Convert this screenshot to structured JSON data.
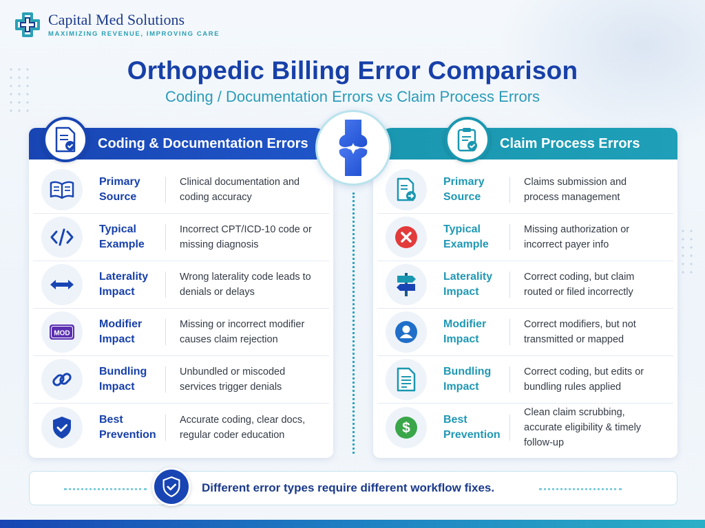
{
  "brand": {
    "name": "Capital Med Solutions",
    "tagline": "MAXIMIZING REVENUE, IMPROVING CARE"
  },
  "title": "Orthopedic Billing Error Comparison",
  "subtitle": "Coding / Documentation Errors vs Claim Process Errors",
  "colors": {
    "left_accent": "#1845b3",
    "right_accent": "#1a97b0",
    "footer_text": "#1a3a8a"
  },
  "left_panel": {
    "title": "Coding & Documentation Errors",
    "header_icon": "document-check-icon",
    "rows": [
      {
        "label": "Primary Source",
        "desc": "Clinical documentation and coding accuracy",
        "icon": "book-icon"
      },
      {
        "label": "Typical Example",
        "desc": "Incorrect CPT/ICD-10 code or missing diagnosis",
        "icon": "code-icon"
      },
      {
        "label": "Laterality Impact",
        "desc": "Wrong laterality code leads to denials or delays",
        "icon": "double-arrow-icon"
      },
      {
        "label": "Modifier Impact",
        "desc": "Missing or incorrect modifier causes claim rejection",
        "icon": "mod-icon",
        "icon_text": "MOD"
      },
      {
        "label": "Bundling Impact",
        "desc": "Unbundled or miscoded services trigger denials",
        "icon": "link-icon"
      },
      {
        "label": "Best Prevention",
        "desc": "Accurate coding, clear docs, regular coder education",
        "icon": "shield-check-icon"
      }
    ]
  },
  "right_panel": {
    "title": "Claim Process Errors",
    "header_icon": "clipboard-check-icon",
    "rows": [
      {
        "label": "Primary Source",
        "desc": "Claims submission and process management",
        "icon": "document-arrow-icon"
      },
      {
        "label": "Typical Example",
        "desc": "Missing authorization or incorrect payer info",
        "icon": "error-x-icon"
      },
      {
        "label": "Laterality Impact",
        "desc": "Correct coding, but claim routed or filed incorrectly",
        "icon": "signpost-icon"
      },
      {
        "label": "Modifier Impact",
        "desc": "Correct modifiers, but not transmitted or mapped",
        "icon": "user-icon"
      },
      {
        "label": "Bundling Impact",
        "desc": "Correct coding, but edits or bundling rules applied",
        "icon": "document-lines-icon"
      },
      {
        "label": "Best Prevention",
        "desc": "Clean claim scrubbing, accurate eligibility & timely follow-up",
        "icon": "dollar-icon"
      }
    ]
  },
  "center_icon": "knee-joint-icon",
  "footer": {
    "text": "Different error types require different workflow fixes.",
    "icon": "shield-check-icon"
  }
}
